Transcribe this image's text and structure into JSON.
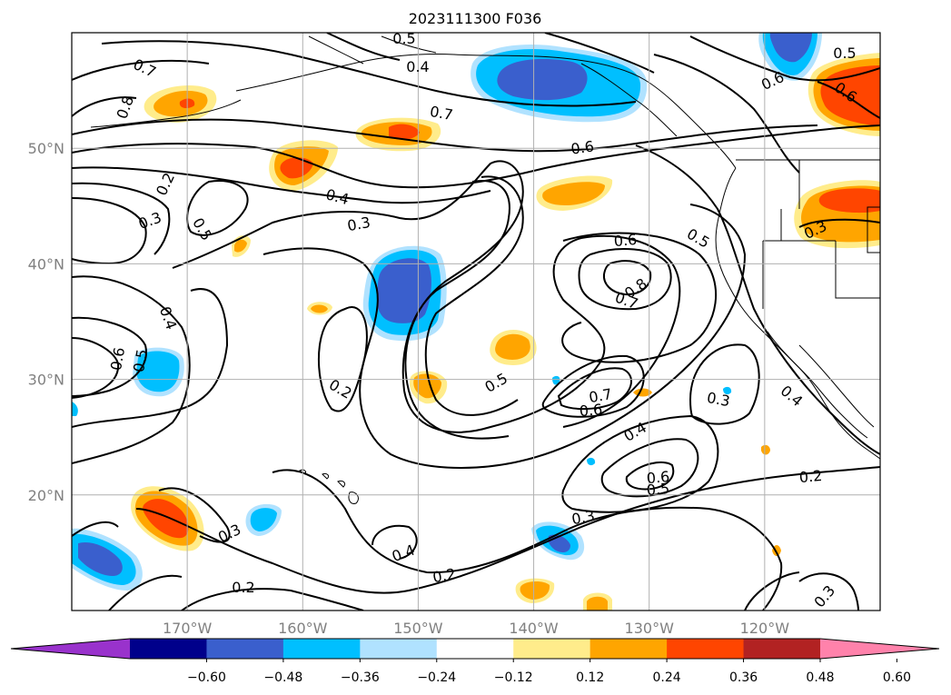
{
  "title": "2023111300 F036",
  "map": {
    "lon_range": [
      -180,
      -110
    ],
    "lat_range": [
      10,
      60
    ],
    "lat_ticks": [
      {
        "value": 20,
        "label": "20°N"
      },
      {
        "value": 30,
        "label": "30°N"
      },
      {
        "value": 40,
        "label": "40°N"
      },
      {
        "value": 50,
        "label": "50°N"
      }
    ],
    "lon_ticks": [
      {
        "value": -170,
        "label": "170°W"
      },
      {
        "value": -160,
        "label": "160°W"
      },
      {
        "value": -150,
        "label": "150°W"
      },
      {
        "value": -140,
        "label": "140°W"
      },
      {
        "value": -130,
        "label": "130°W"
      },
      {
        "value": -120,
        "label": "120°W"
      }
    ],
    "grid": true,
    "contour_labels": [
      "0.7",
      "0.8",
      "0.4",
      "0.5",
      "0.7",
      "0.6",
      "0.5",
      "0.6",
      "0.2",
      "0.3",
      "0.5",
      "0.4",
      "0.3",
      "0.6",
      "0.5",
      "0.8",
      "0.7",
      "0.6",
      "0.5",
      "0.3",
      "0.4",
      "0.6",
      "0.5",
      "0.2",
      "0.7",
      "0.6",
      "0.3",
      "0.4",
      "0.4",
      "0.6",
      "0.5",
      "0.2",
      "0.3",
      "0.3",
      "0.4",
      "0.2",
      "0.2",
      "0.3"
    ]
  },
  "colorbar": {
    "extend": "both",
    "colors": [
      "#9932cc",
      "#00008b",
      "#3a5fcd",
      "#00bfff",
      "#b0e2ff",
      "#ffffff",
      "#ffec8b",
      "#ffa500",
      "#ff4500",
      "#b22222",
      "#ff82ab"
    ],
    "tick_labels": [
      "−0.60",
      "−0.48",
      "−0.36",
      "−0.24",
      "−0.12",
      "0.12",
      "0.24",
      "0.36",
      "0.48",
      "0.60"
    ]
  }
}
